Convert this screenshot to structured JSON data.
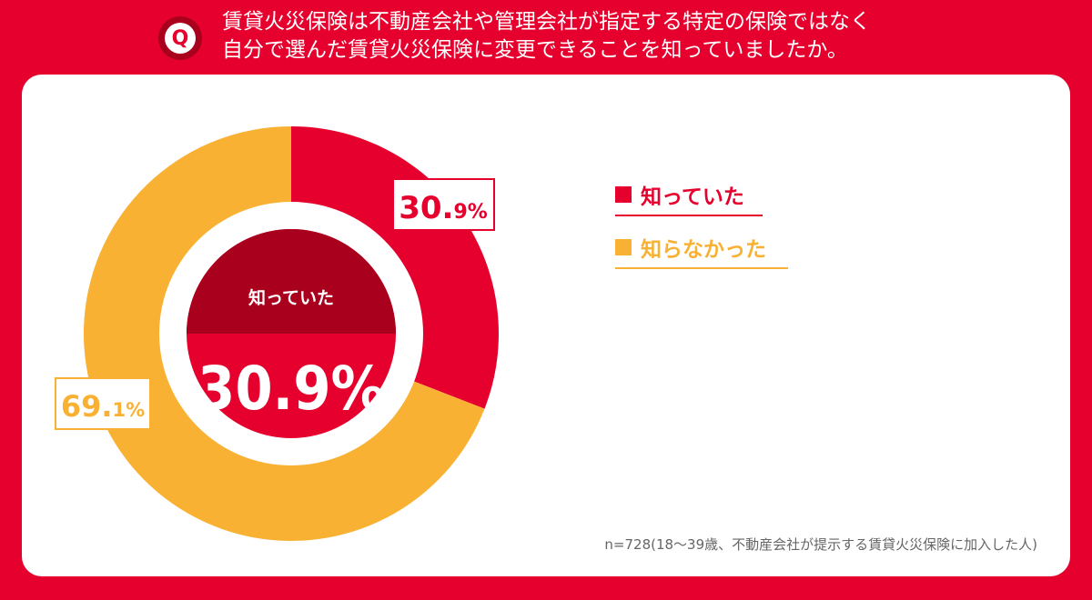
{
  "question": {
    "badge": "Q",
    "line1": "賃貸火災保険は不動産会社や管理会社が指定する特定の保険ではなく",
    "line2": "自分で選んだ賃貸火災保険に変更できることを知っていましたか。"
  },
  "colors": {
    "background": "#e5002d",
    "known": "#e5002d",
    "unknown": "#f8b133",
    "known_dark": "#a8001d"
  },
  "chart_data": {
    "type": "pie",
    "series": [
      {
        "name": "知っていた",
        "value": 30.9,
        "label_main": "30.",
        "label_small": "9%"
      },
      {
        "name": "知らなかった",
        "value": 69.1,
        "label_main": "69.",
        "label_small": "1%"
      }
    ],
    "center_label": "知っていた",
    "center_value": "30.9%",
    "legend_position": "right"
  },
  "note": "n=728(18～39歳、不動産会社が提示する賃貸火災保険に加入した人)"
}
